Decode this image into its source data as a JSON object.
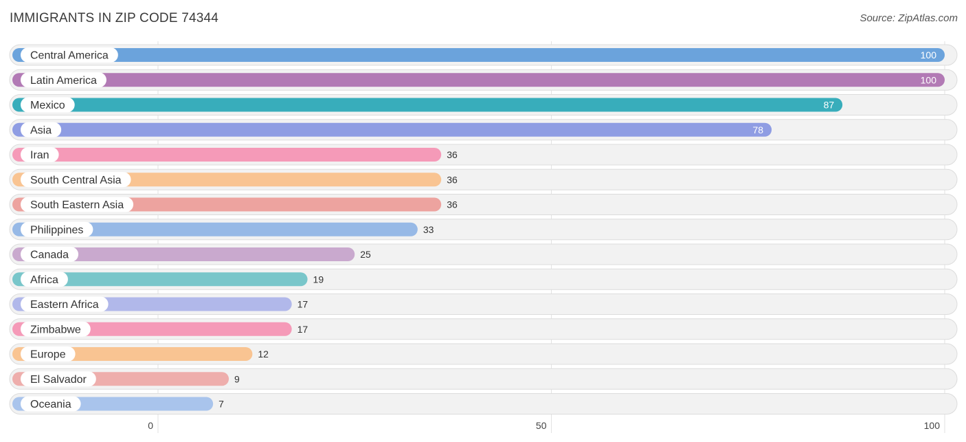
{
  "header": {
    "title": "IMMIGRANTS IN ZIP CODE 74344",
    "source": "Source: ZipAtlas.com"
  },
  "chart_data": {
    "type": "bar",
    "orientation": "horizontal",
    "title": "IMMIGRANTS IN ZIP CODE 74344",
    "xlim": [
      0,
      100
    ],
    "xticks": [
      0,
      50,
      100
    ],
    "grid": true,
    "categories": [
      "Central America",
      "Latin America",
      "Mexico",
      "Asia",
      "Iran",
      "South Central Asia",
      "South Eastern Asia",
      "Philippines",
      "Canada",
      "Africa",
      "Eastern Africa",
      "Zimbabwe",
      "Europe",
      "El Salvador",
      "Oceania"
    ],
    "values": [
      100,
      100,
      87,
      78,
      36,
      36,
      36,
      33,
      25,
      19,
      17,
      17,
      12,
      9,
      7
    ],
    "colors": [
      "#6ba3dc",
      "#b27ab5",
      "#38adbb",
      "#8f9de3",
      "#f59ab8",
      "#f9c492",
      "#eda39f",
      "#97b9e6",
      "#c9a9ce",
      "#79c6ca",
      "#b1b8ea",
      "#f59ab8",
      "#f9c492",
      "#eeaeac",
      "#a9c4ec"
    ]
  }
}
